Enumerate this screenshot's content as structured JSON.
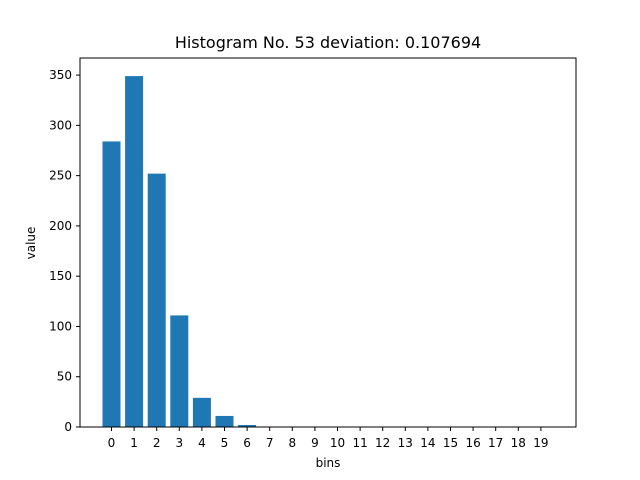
{
  "chart_data": {
    "type": "bar",
    "title": "Histogram No. 53 deviation: 0.107694",
    "xlabel": "bins",
    "ylabel": "value",
    "categories": [
      "0",
      "1",
      "2",
      "3",
      "4",
      "5",
      "6",
      "7",
      "8",
      "9",
      "10",
      "11",
      "12",
      "13",
      "14",
      "15",
      "16",
      "17",
      "18",
      "19"
    ],
    "values": [
      284,
      349,
      252,
      111,
      29,
      11,
      2,
      0,
      0,
      0,
      0,
      0,
      0,
      0,
      0,
      0,
      0,
      0,
      0,
      0
    ],
    "ylim": [
      0,
      367
    ],
    "yticks": [
      0,
      50,
      100,
      150,
      200,
      250,
      300,
      350
    ],
    "grid": false,
    "bar_color": "#1f77b4"
  }
}
